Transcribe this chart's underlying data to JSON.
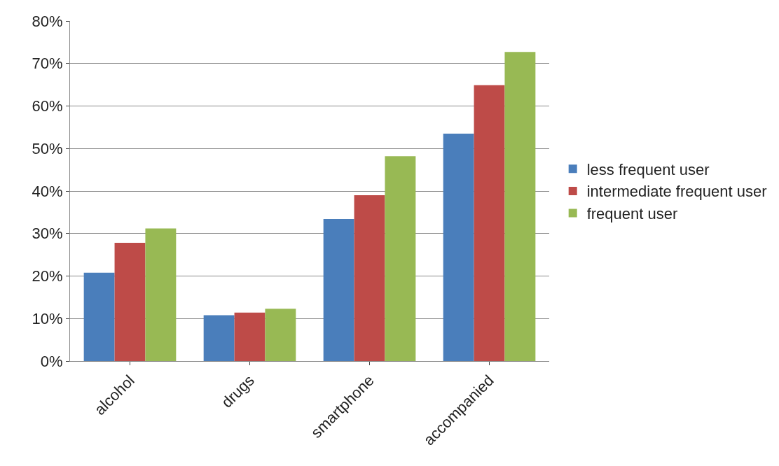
{
  "chart_data": {
    "type": "bar",
    "categories": [
      "alcohol",
      "drugs",
      "smartphone",
      "accompanied"
    ],
    "series": [
      {
        "name": "less frequent user",
        "color": "#4a7ebb",
        "values": [
          20.8,
          10.8,
          33.4,
          53.5
        ]
      },
      {
        "name": "intermediate frequent user",
        "color": "#be4b48",
        "values": [
          27.8,
          11.4,
          39,
          64.9
        ]
      },
      {
        "name": "frequent user",
        "color": "#98b954",
        "values": [
          31.2,
          12.3,
          48.2,
          72.7
        ]
      }
    ],
    "ylim": [
      0,
      80
    ],
    "yticks": [
      {
        "value": 0,
        "label": "0%"
      },
      {
        "value": 10,
        "label": "10%"
      },
      {
        "value": 20,
        "label": "20%"
      },
      {
        "value": 30,
        "label": "30%"
      },
      {
        "value": 40,
        "label": "40%"
      },
      {
        "value": 50,
        "label": "50%"
      },
      {
        "value": 60,
        "label": "60%"
      },
      {
        "value": 70,
        "label": "70%"
      },
      {
        "value": 80,
        "label": "80%"
      }
    ],
    "grid": "y",
    "legend": "right"
  }
}
